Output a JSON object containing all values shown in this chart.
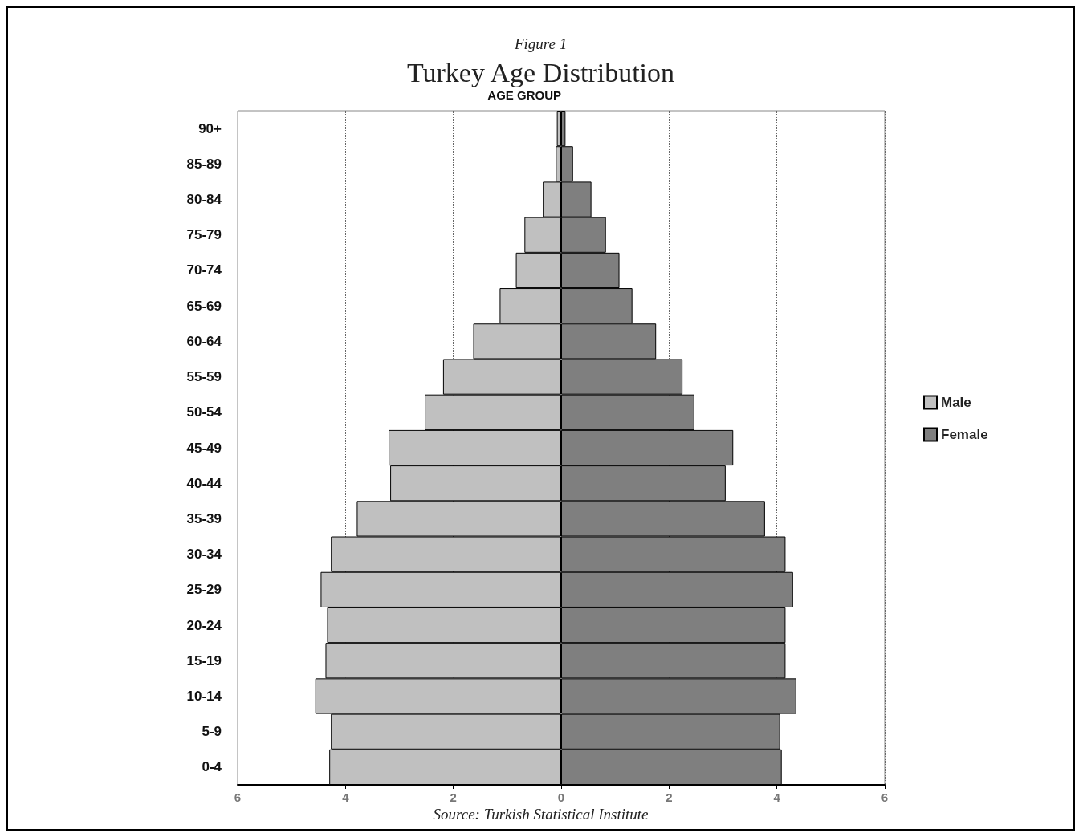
{
  "chart_data": {
    "type": "bar",
    "orientation": "horizontal",
    "stacked": true,
    "subtitle": "Figure 1",
    "title": "Turkey Age Distribution",
    "ylabel": "AGE GROUP",
    "categories": [
      "90+",
      "85-89",
      "80-84",
      "75-79",
      "70-74",
      "65-69",
      "60-64",
      "55-59",
      "50-54",
      "45-49",
      "40-44",
      "35-39",
      "30-34",
      "25-29",
      "20-24",
      "15-19",
      "10-14",
      "5-9",
      "0-4"
    ],
    "series": [
      {
        "name": "Male",
        "color": "#c0c0c0",
        "values": [
          -0.08,
          -0.1,
          -0.34,
          -0.68,
          -0.84,
          -1.14,
          -1.63,
          -2.19,
          -2.53,
          -3.2,
          -3.17,
          -3.79,
          -4.27,
          -4.46,
          -4.34,
          -4.37,
          -4.56,
          -4.27,
          -4.3
        ]
      },
      {
        "name": "Female",
        "color": "#7f7f7f",
        "values": [
          0.08,
          0.22,
          0.56,
          0.83,
          1.08,
          1.32,
          1.76,
          2.25,
          2.47,
          3.19,
          3.05,
          3.78,
          4.16,
          4.3,
          4.16,
          4.16,
          4.36,
          4.06,
          4.09
        ]
      }
    ],
    "xlim": [
      -6,
      6
    ],
    "xticks": [
      {
        "value": -6,
        "label": "6"
      },
      {
        "value": -4,
        "label": "4"
      },
      {
        "value": -2,
        "label": "2"
      },
      0,
      2,
      4,
      6
    ],
    "grid": "x",
    "legend": "right",
    "annotations": [
      "Source: Turkish Statistical Institute"
    ]
  }
}
